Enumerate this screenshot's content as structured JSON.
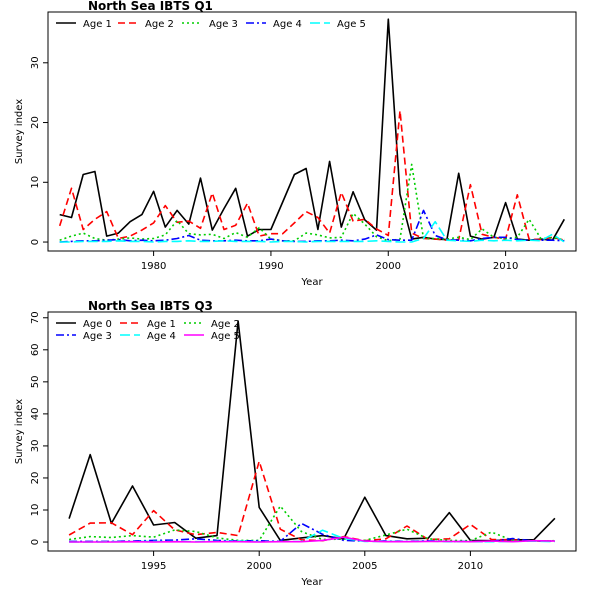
{
  "chart_data": [
    {
      "type": "line",
      "title": "North Sea IBTS Q1",
      "xlabel": "Year",
      "ylabel": "Survey index",
      "xlim": [
        1971,
        2016
      ],
      "ylim": [
        -1.5,
        38.5
      ],
      "xticks": [
        1980,
        1990,
        2000,
        2010
      ],
      "yticks": [
        0,
        10,
        20,
        30
      ],
      "legend_position": "top-left",
      "x": [
        1972,
        1973,
        1974,
        1975,
        1976,
        1977,
        1978,
        1979,
        1980,
        1981,
        1982,
        1983,
        1984,
        1985,
        1986,
        1987,
        1988,
        1989,
        1990,
        1991,
        1992,
        1993,
        1994,
        1995,
        1996,
        1997,
        1998,
        1999,
        2000,
        2001,
        2002,
        2003,
        2004,
        2005,
        2006,
        2007,
        2008,
        2009,
        2010,
        2011,
        2012,
        2013,
        2014,
        2015
      ],
      "series": [
        {
          "name": "Age 1",
          "color": "#000000",
          "dash": "solid",
          "values": [
            4.6,
            4.1,
            11.3,
            11.8,
            1.0,
            1.5,
            3.4,
            4.6,
            8.5,
            2.5,
            5.3,
            3.0,
            10.7,
            2.0,
            5.6,
            9.0,
            1.0,
            2.1,
            2.1,
            6.7,
            11.3,
            12.3,
            2.1,
            13.5,
            2.5,
            8.4,
            3.7,
            2.0,
            37.3,
            8.0,
            0.5,
            0.8,
            0.5,
            0.4,
            11.5,
            1.0,
            0.5,
            0.8,
            6.6,
            0.5,
            0.3,
            0.5,
            0.3,
            3.8
          ]
        },
        {
          "name": "Age 2",
          "color": "#ff0000",
          "dash": "dashed",
          "values": [
            2.7,
            9.0,
            2.1,
            3.8,
            5.1,
            0.6,
            1.0,
            2.0,
            3.2,
            6.1,
            3.3,
            3.5,
            2.3,
            8.2,
            2.1,
            2.8,
            6.5,
            1.0,
            1.4,
            1.4,
            3.2,
            5.1,
            4.1,
            1.5,
            8.3,
            3.5,
            3.8,
            2.2,
            1.1,
            22.0,
            1.5,
            0.6,
            0.5,
            0.3,
            0.4,
            9.6,
            1.3,
            0.8,
            0.5,
            7.9,
            0.5,
            0.4,
            0.8,
            0.3
          ]
        },
        {
          "name": "Age 3",
          "color": "#00cd00",
          "dash": "dotted",
          "values": [
            0.3,
            1.0,
            1.5,
            0.6,
            0.3,
            0.5,
            0.7,
            0.5,
            0.6,
            1.2,
            3.6,
            1.4,
            1.2,
            1.3,
            0.6,
            1.6,
            0.8,
            2.4,
            0.5,
            0.2,
            0.2,
            1.5,
            1.2,
            0.7,
            0.8,
            4.8,
            3.0,
            0.9,
            0.2,
            0.5,
            13.0,
            0.6,
            0.6,
            0.5,
            0.8,
            0.4,
            2.2,
            0.8,
            0.6,
            0.8,
            3.8,
            0.6,
            0.7,
            0.4
          ]
        },
        {
          "name": "Age 4",
          "color": "#0000ff",
          "dash": "dotdash",
          "values": [
            0.0,
            0.1,
            0.2,
            0.2,
            0.3,
            0.4,
            0.2,
            0.3,
            0.2,
            0.3,
            0.6,
            1.1,
            0.3,
            0.2,
            0.2,
            0.3,
            0.2,
            0.2,
            0.5,
            0.2,
            0.1,
            0.1,
            0.2,
            0.2,
            0.3,
            0.2,
            0.5,
            1.2,
            0.4,
            0.3,
            0.3,
            5.3,
            1.1,
            0.4,
            0.3,
            0.2,
            0.6,
            0.8,
            0.8,
            0.4,
            0.3,
            0.3,
            0.3,
            0.2
          ]
        },
        {
          "name": "Age 5",
          "color": "#00ffff",
          "dash": "longdash",
          "values": [
            0.0,
            0.0,
            0.1,
            0.1,
            0.1,
            0.2,
            0.1,
            0.1,
            0.0,
            0.1,
            0.1,
            0.2,
            0.1,
            0.1,
            0.2,
            0.1,
            0.1,
            0.1,
            0.0,
            0.1,
            0.1,
            0.0,
            0.1,
            0.1,
            0.1,
            0.1,
            0.1,
            0.2,
            0.1,
            0.0,
            0.0,
            0.6,
            3.4,
            0.3,
            0.2,
            0.1,
            0.3,
            0.2,
            0.3,
            0.2,
            0.3,
            0.2,
            1.3,
            0.0
          ]
        }
      ]
    },
    {
      "type": "line",
      "title": "North Sea IBTS Q3",
      "xlabel": "Year",
      "ylabel": "Survey index",
      "xlim": [
        1990,
        2015
      ],
      "ylim": [
        -2.8,
        71.8
      ],
      "xticks": [
        1995,
        2000,
        2005,
        2010
      ],
      "yticks": [
        0,
        10,
        20,
        30,
        40,
        50,
        60,
        70
      ],
      "legend_position": "top-left",
      "x": [
        1991,
        1992,
        1993,
        1994,
        1995,
        1996,
        1997,
        1998,
        1999,
        2000,
        2001,
        2002,
        2003,
        2004,
        2005,
        2006,
        2007,
        2008,
        2009,
        2010,
        2011,
        2012,
        2013,
        2014
      ],
      "series": [
        {
          "name": "Age 0",
          "color": "#000000",
          "dash": "solid",
          "values": [
            7.3,
            27.3,
            5.8,
            17.5,
            5.3,
            6.1,
            1.2,
            2.0,
            69.0,
            10.8,
            0.5,
            1.3,
            2.0,
            1.0,
            14.0,
            2.0,
            1.0,
            1.2,
            9.2,
            0.5,
            0.4,
            0.7,
            0.7,
            7.4
          ]
        },
        {
          "name": "Age 1",
          "color": "#ff0000",
          "dash": "dashed",
          "values": [
            2.2,
            5.9,
            6.0,
            2.3,
            9.8,
            3.8,
            2.3,
            3.0,
            2.0,
            25.2,
            4.0,
            0.7,
            0.4,
            1.7,
            0.4,
            1.0,
            5.0,
            0.8,
            1.0,
            5.5,
            0.8,
            0.7,
            0.4,
            0.3
          ]
        },
        {
          "name": "Age 2",
          "color": "#00cd00",
          "dash": "dotted",
          "values": [
            0.8,
            1.7,
            1.4,
            2.0,
            1.5,
            3.8,
            3.3,
            1.3,
            0.5,
            0.5,
            11.2,
            3.3,
            0.8,
            0.9,
            0.5,
            2.2,
            4.0,
            1.0,
            0.5,
            0.4,
            3.1,
            0.5,
            0.3,
            0.4
          ]
        },
        {
          "name": "Age 3",
          "color": "#0000ff",
          "dash": "dotdash",
          "values": [
            0.2,
            0.2,
            0.2,
            0.3,
            0.5,
            0.6,
            1.0,
            0.5,
            0.3,
            0.4,
            0.2,
            5.8,
            2.4,
            0.5,
            0.3,
            0.3,
            0.2,
            0.4,
            0.2,
            0.2,
            0.2,
            1.1,
            0.3,
            0.3
          ]
        },
        {
          "name": "Age 4",
          "color": "#00ffff",
          "dash": "longdash",
          "values": [
            0.0,
            0.0,
            0.1,
            0.1,
            0.2,
            0.1,
            0.1,
            0.2,
            0.3,
            0.1,
            0.1,
            0.2,
            3.7,
            1.1,
            0.2,
            0.2,
            0.1,
            0.3,
            0.1,
            0.1,
            0.1,
            0.2,
            0.3,
            0.1
          ]
        },
        {
          "name": "Age 5",
          "color": "#ff00ff",
          "dash": "solid",
          "values": [
            0.0,
            0.0,
            0.0,
            0.1,
            0.0,
            0.1,
            0.0,
            0.1,
            0.1,
            0.0,
            0.1,
            0.1,
            0.5,
            1.5,
            0.3,
            0.1,
            0.1,
            0.2,
            0.2,
            0.1,
            0.3,
            0.1,
            0.4,
            0.3
          ]
        }
      ]
    }
  ]
}
